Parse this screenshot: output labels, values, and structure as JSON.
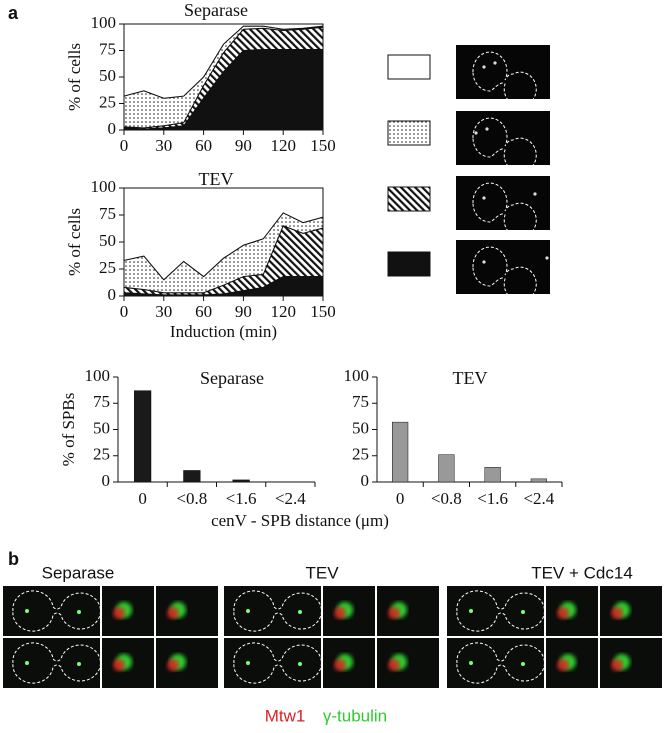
{
  "panel_labels": [
    "a",
    "b"
  ],
  "chart_data": [
    {
      "type": "area",
      "title": "Separase",
      "y_label": "% of cells",
      "x": [
        0,
        15,
        30,
        45,
        60,
        75,
        90,
        105,
        120,
        135,
        150
      ],
      "series": [
        {
          "pattern": "solid",
          "color": "#111111",
          "values": [
            2,
            1,
            2,
            4,
            30,
            55,
            75,
            76,
            76,
            76,
            76
          ]
        },
        {
          "pattern": "hatch",
          "color": "#111111",
          "values": [
            1,
            1,
            2,
            3,
            12,
            18,
            20,
            20,
            18,
            19,
            21
          ]
        },
        {
          "pattern": "dots",
          "color": "#111111",
          "values": [
            29,
            35,
            26,
            25,
            8,
            8,
            3,
            2,
            1,
            1,
            1
          ]
        },
        {
          "pattern": "solid",
          "color": "#ffffff",
          "values": [
            68,
            63,
            70,
            68,
            50,
            19,
            2,
            2,
            5,
            4,
            2
          ]
        }
      ],
      "xlim": [
        0,
        150
      ],
      "xticks": [
        0,
        30,
        60,
        90,
        120,
        150
      ],
      "ylim": [
        0,
        100
      ],
      "yticks": [
        0,
        25,
        50,
        75,
        100
      ]
    },
    {
      "type": "area",
      "title": "TEV",
      "y_label": "% of cells",
      "x_label": "Induction (min)",
      "x": [
        0,
        15,
        30,
        45,
        60,
        75,
        90,
        105,
        120,
        135,
        150
      ],
      "series": [
        {
          "pattern": "solid",
          "color": "#111111",
          "values": [
            3,
            2,
            1,
            1,
            1,
            2,
            5,
            8,
            18,
            18,
            18
          ]
        },
        {
          "pattern": "hatch",
          "color": "#111111",
          "values": [
            5,
            4,
            2,
            2,
            2,
            8,
            13,
            12,
            47,
            40,
            45
          ]
        },
        {
          "pattern": "dots",
          "color": "#111111",
          "values": [
            25,
            31,
            12,
            29,
            15,
            25,
            29,
            33,
            12,
            10,
            10
          ]
        },
        {
          "pattern": "solid",
          "color": "#ffffff",
          "values": [
            67,
            63,
            85,
            68,
            82,
            65,
            53,
            47,
            23,
            32,
            27
          ]
        }
      ],
      "xlim": [
        0,
        150
      ],
      "xticks": [
        0,
        30,
        60,
        90,
        120,
        150
      ],
      "ylim": [
        0,
        100
      ],
      "yticks": [
        0,
        25,
        50,
        75,
        100
      ]
    },
    {
      "type": "bar",
      "title": "Separase",
      "y_label": "% of SPBs",
      "x_label": "cenV - SPB distance (μm)",
      "categories": [
        "0",
        "<0.8",
        "<1.6",
        "<2.4"
      ],
      "values": [
        87,
        11,
        2,
        0
      ],
      "color": "#1a1a1a",
      "ylim": [
        0,
        100
      ],
      "yticks": [
        0,
        25,
        50,
        75,
        100
      ]
    },
    {
      "type": "bar",
      "title": "TEV",
      "categories": [
        "0",
        "<0.8",
        "<1.6",
        "<2.4"
      ],
      "values": [
        57,
        26,
        14,
        3
      ],
      "color": "#999999",
      "ylim": [
        0,
        100
      ],
      "yticks": [
        0,
        25,
        50,
        75,
        100
      ]
    }
  ],
  "panel_b": {
    "titles": [
      "Separase",
      "TEV",
      "TEV + Cdc14"
    ],
    "legend": [
      {
        "text": "Mtw1",
        "color": "#e02020"
      },
      {
        "text": "γ-tubulin",
        "color": "#2ecc2e"
      }
    ]
  }
}
